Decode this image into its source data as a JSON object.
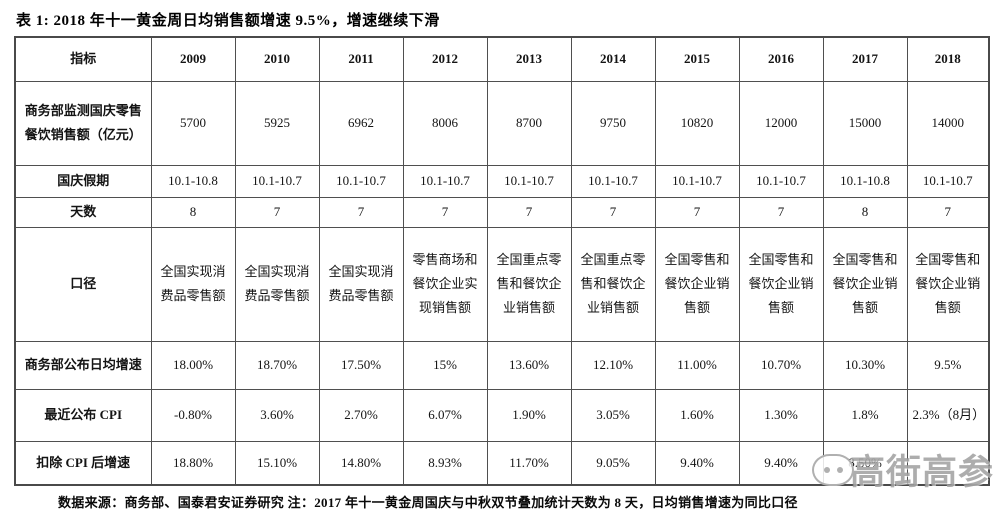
{
  "title": "表 1: 2018 年十一黄金周日均销售额增速 9.5%，增速继续下滑",
  "footer": "数据来源：商务部、国泰君安证券研究 注：2017 年十一黄金周国庆与中秋双节叠加统计天数为 8 天，日均销售增速为同比口径",
  "watermark": {
    "text": "高街高参",
    "icon": "speech-bubble-icon"
  },
  "chart_data": {
    "type": "table",
    "header": [
      "指标",
      "2009",
      "2010",
      "2011",
      "2012",
      "2013",
      "2014",
      "2015",
      "2016",
      "2017",
      "2018"
    ],
    "rows": [
      {
        "label": "商务部监测国庆零售餐饮销售额（亿元）",
        "values": [
          "5700",
          "5925",
          "6962",
          "8006",
          "8700",
          "9750",
          "10820",
          "12000",
          "15000",
          "14000"
        ]
      },
      {
        "label": "国庆假期",
        "values": [
          "10.1-10.8",
          "10.1-10.7",
          "10.1-10.7",
          "10.1-10.7",
          "10.1-10.7",
          "10.1-10.7",
          "10.1-10.7",
          "10.1-10.7",
          "10.1-10.8",
          "10.1-10.7"
        ]
      },
      {
        "label": "天数",
        "values": [
          "8",
          "7",
          "7",
          "7",
          "7",
          "7",
          "7",
          "7",
          "8",
          "7"
        ]
      },
      {
        "label": "口径",
        "values": [
          "全国实现消费品零售额",
          "全国实现消费品零售额",
          "全国实现消费品零售额",
          "零售商场和餐饮企业实现销售额",
          "全国重点零售和餐饮企业销售额",
          "全国重点零售和餐饮企业销售额",
          "全国零售和餐饮企业销售额",
          "全国零售和餐饮企业销售额",
          "全国零售和餐饮企业销售额",
          "全国零售和餐饮企业销售额"
        ]
      },
      {
        "label": "商务部公布日均增速",
        "values": [
          "18.00%",
          "18.70%",
          "17.50%",
          "15%",
          "13.60%",
          "12.10%",
          "11.00%",
          "10.70%",
          "10.30%",
          "9.5%"
        ]
      },
      {
        "label": "最近公布 CPI",
        "values": [
          "-0.80%",
          "3.60%",
          "2.70%",
          "6.07%",
          "1.90%",
          "3.05%",
          "1.60%",
          "1.30%",
          "1.8%",
          "2.3%（8月）"
        ]
      },
      {
        "label": "扣除 CPI 后增速",
        "values": [
          "18.80%",
          "15.10%",
          "14.80%",
          "8.93%",
          "11.70%",
          "9.05%",
          "9.40%",
          "9.40%",
          "8.50%",
          ""
        ]
      }
    ]
  }
}
